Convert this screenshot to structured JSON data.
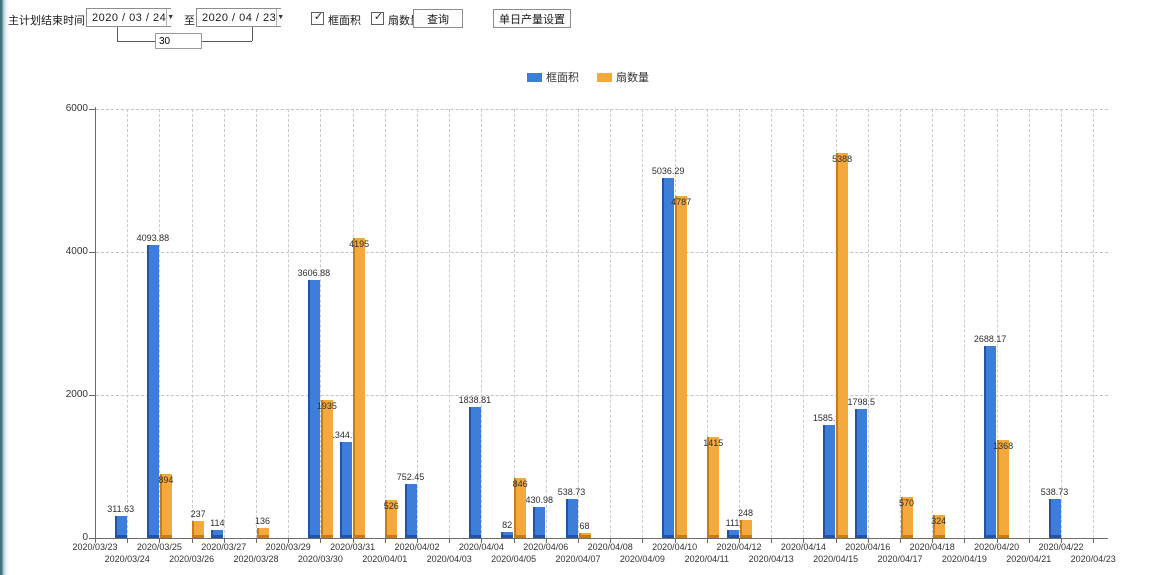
{
  "window": {
    "edge_color": "#41707f"
  },
  "toolbar": {
    "end_time_label": "主计划结束时间:",
    "date_from": "2020 / 03 / 24",
    "to_label": "至:",
    "date_to": "2020 / 04 / 23",
    "span_days": "30",
    "filters": [
      {
        "label": "框面积",
        "checked": true
      },
      {
        "label": "扇数量",
        "checked": true
      }
    ],
    "query_button": "查询",
    "daily_output_button": "单日产量设置"
  },
  "legend": {
    "series1": "框面积",
    "series2": "扇数量"
  },
  "colors": {
    "blue": "#3d7edb",
    "blue_dark": "#2253a6",
    "orange": "#f3a93c",
    "orange_dark": "#c57e17",
    "grid": "#c9c9c9",
    "axis": "#6b6b6b"
  },
  "chart_data": {
    "type": "bar",
    "title": "",
    "xlabel": "",
    "ylabel": "",
    "ylim": [
      0,
      6000
    ],
    "yticks": [
      0,
      2000,
      4000,
      6000
    ],
    "grid": "dashed",
    "legend_position": "top",
    "categories": [
      "2020/03/23",
      "2020/03/24",
      "2020/03/25",
      "2020/03/26",
      "2020/03/27",
      "2020/03/28",
      "2020/03/29",
      "2020/03/30",
      "2020/03/31",
      "2020/04/01",
      "2020/04/02",
      "2020/04/03",
      "2020/04/04",
      "2020/04/05",
      "2020/04/06",
      "2020/04/07",
      "2020/04/08",
      "2020/04/09",
      "2020/04/10",
      "2020/04/11",
      "2020/04/12",
      "2020/04/13",
      "2020/04/14",
      "2020/04/15",
      "2020/04/16",
      "2020/04/17",
      "2020/04/18",
      "2020/04/19",
      "2020/04/20",
      "2020/04/21",
      "2020/04/22",
      "2020/04/23"
    ],
    "series": [
      {
        "name": "框面积",
        "color": "#3d7edb",
        "values": [
          null,
          311.63,
          4093.88,
          null,
          114,
          null,
          null,
          3606.88,
          1344.95,
          null,
          752.45,
          null,
          1838.81,
          82,
          430.98,
          538.73,
          null,
          null,
          5036.29,
          null,
          111,
          null,
          null,
          1585.96,
          1798.5,
          null,
          null,
          null,
          2688.17,
          null,
          538.73,
          null
        ]
      },
      {
        "name": "扇数量",
        "color": "#f3a93c",
        "values": [
          null,
          null,
          894,
          237,
          null,
          136,
          null,
          1935,
          4195,
          526,
          null,
          null,
          null,
          846,
          null,
          68,
          null,
          null,
          4787,
          1415,
          248,
          null,
          null,
          5388,
          null,
          570,
          324,
          null,
          1368,
          null,
          null,
          null
        ]
      }
    ]
  }
}
